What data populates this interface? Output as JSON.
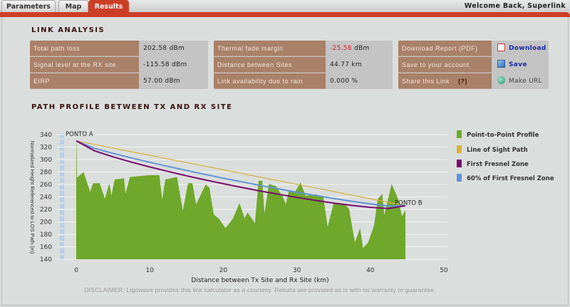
{
  "tabs": [
    {
      "label": "Parameters"
    },
    {
      "label": "Map"
    },
    {
      "label": "Results"
    }
  ],
  "welcome": "Welcome Back, Superlink",
  "link_analysis": {
    "title": "LINK ANALYSIS",
    "box1": [
      {
        "label": "Total path loss",
        "value": "202.58 dBm"
      },
      {
        "label": "Signal level at the RX site",
        "value": "-115.58 dBm"
      },
      {
        "label": "EIRP",
        "value": "57.00 dBm"
      }
    ],
    "box2": [
      {
        "label": "Thermal fade margin",
        "value_red": "-25.58",
        "value": " dBm"
      },
      {
        "label": "Distance between Sites",
        "value": "44.77 km"
      },
      {
        "label": "Link availability due to rain",
        "value": "0.000 %"
      }
    ],
    "box3": [
      {
        "label": "Download Report (PDF)",
        "action": "Download",
        "icon": "pdf-icon"
      },
      {
        "label": "Save to your account",
        "action": "Save",
        "icon": "save-icon"
      },
      {
        "label": "Share this Link",
        "help": "(?)",
        "action": "Make URL",
        "icon": "globe-icon"
      }
    ]
  },
  "profile_title": "PATH PROFILE BETWEEN TX AND RX SITE",
  "disclaimer": "DISCLAIMER: Ligowave provides this link calculator as a courtesy.  Results are provided as is with no warranty or guarantee.",
  "colors": {
    "terrain": "#6fa82a",
    "los": "#d9b23c",
    "fresnel": "#7a0a6e",
    "fresnel60": "#5f93d8",
    "accent": "#cc3f27"
  },
  "chart_data": {
    "type": "area",
    "xlabel": "Distance between Tx Site and Rx Site (km)",
    "ylabel": "Normalized Height Referenced to LOS Path (m)",
    "xlim": [
      0,
      50
    ],
    "ylim": [
      140,
      340
    ],
    "xticks": [
      0,
      10,
      20,
      30,
      40,
      50
    ],
    "yticks": [
      140,
      160,
      180,
      200,
      220,
      240,
      260,
      280,
      300,
      320,
      340
    ],
    "annotations": [
      {
        "text": "PONTO A",
        "x": 0,
        "y": 340
      },
      {
        "text": "PONTO B",
        "x": 44.77,
        "y": 232
      }
    ],
    "legend": [
      "Point-to-Point Profile",
      "Line of Sight Path",
      "First Fresnel Zone",
      "60% of First Fresnel Zone"
    ],
    "terrain": {
      "x": [
        0,
        0.05,
        0.1,
        1,
        1.9,
        2.3,
        3.2,
        3.9,
        4.5,
        4.8,
        5.2,
        6.5,
        6.7,
        7.3,
        10,
        11.3,
        11.7,
        12.1,
        13.7,
        14.5,
        15.2,
        15.8,
        16.3,
        17.6,
        18.1,
        18.7,
        19.4,
        20.3,
        21.3,
        22.2,
        22.9,
        23.3,
        24.3,
        24.8,
        25.3,
        25.6,
        26.2,
        27.2,
        28.1,
        28.5,
        28.9,
        29.7,
        30.5,
        31.2,
        32.6,
        33.6,
        34.2,
        35.0,
        36.5,
        37.1,
        37.9,
        38.6,
        39.0,
        39.7,
        40.5,
        41.0,
        41.6,
        41.9,
        42.9,
        43.4,
        43.8,
        44.3,
        44.77
      ],
      "y": [
        330,
        320,
        271,
        280,
        248,
        262,
        262,
        237,
        262,
        242,
        268,
        270,
        245,
        272,
        275,
        275,
        236,
        268,
        272,
        218,
        262,
        262,
        228,
        260,
        255,
        212,
        205,
        190,
        205,
        230,
        206,
        215,
        198,
        266,
        266,
        213,
        261,
        257,
        240,
        228,
        249,
        247,
        263,
        242,
        244,
        240,
        192,
        230,
        228,
        221,
        167,
        190,
        158,
        167,
        194,
        236,
        245,
        211,
        261,
        247,
        236,
        209,
        219
      ]
    },
    "x": [
      0,
      2.5,
      5,
      7.5,
      10,
      12.5,
      15,
      17.5,
      20,
      22.5,
      25,
      27.5,
      30,
      32.5,
      35,
      37.5,
      40,
      42.5,
      44.77
    ],
    "series": [
      {
        "name": "Line of Sight Path",
        "values": [
          330,
          324.2,
          318.4,
          312.6,
          306.8,
          301.0,
          295.2,
          289.3,
          283.5,
          277.7,
          271.9,
          266.1,
          260.3,
          254.5,
          248.7,
          242.9,
          237.1,
          231.3,
          226.0
        ]
      },
      {
        "name": "First Fresnel Zone",
        "values": [
          330,
          313.9,
          304.3,
          295.9,
          288.1,
          280.9,
          274.0,
          267.4,
          261.2,
          255.3,
          249.6,
          244.3,
          239.2,
          234.5,
          230.2,
          226.4,
          223.3,
          221.5,
          226.0
        ]
      },
      {
        "name": "60% of First Fresnel Zone",
        "values": [
          330,
          318.0,
          309.9,
          302.6,
          295.6,
          288.9,
          282.5,
          276.2,
          270.1,
          264.3,
          258.5,
          253.0,
          247.6,
          242.5,
          237.6,
          233.0,
          228.8,
          225.4,
          226.0
        ]
      }
    ]
  }
}
